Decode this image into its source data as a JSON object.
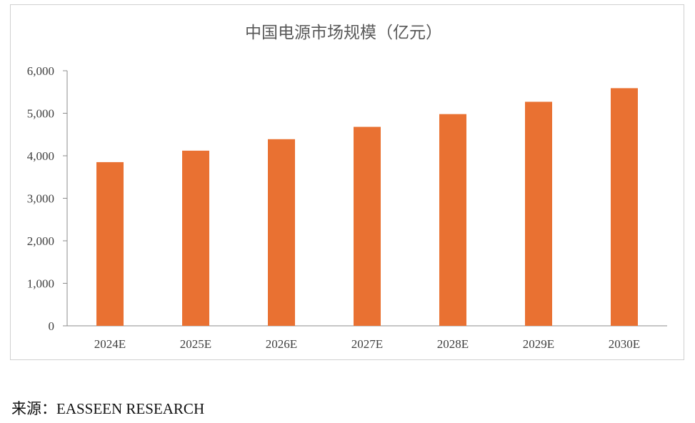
{
  "chart_data": {
    "type": "bar",
    "title": "中国电源市场规模（亿元）",
    "xlabel": "",
    "ylabel": "",
    "categories": [
      "2024E",
      "2025E",
      "2026E",
      "2027E",
      "2028E",
      "2029E",
      "2030E"
    ],
    "values": [
      3850,
      4120,
      4390,
      4680,
      4980,
      5270,
      5590
    ],
    "ylim": [
      0,
      6000
    ],
    "yticks": [
      0,
      1000,
      2000,
      3000,
      4000,
      5000,
      6000
    ],
    "ytick_labels": [
      "0",
      "1,000",
      "2,000",
      "3,000",
      "4,000",
      "5,000",
      "6,000"
    ],
    "grid": false,
    "legend": "none",
    "bar_color": "#E97132"
  },
  "source": {
    "text": "来源：EASSEEN RESEARCH"
  }
}
